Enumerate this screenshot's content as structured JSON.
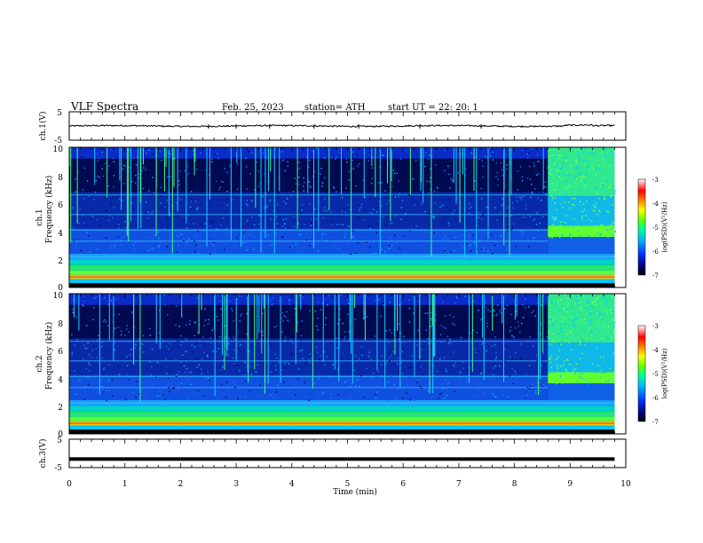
{
  "header": {
    "title": "VLF  Spectra",
    "date": "Feb. 25, 2023",
    "station": "station= ATH",
    "start": "start  UT  =    22: 20: 1"
  },
  "colors": {
    "background": "#ffffff",
    "axes": "#000000",
    "waveform": "#000000",
    "colormap": [
      "#000000",
      "#0000a0",
      "#0050ff",
      "#00c8ff",
      "#00ff80",
      "#c8ff00",
      "#ff8000",
      "#ff0000",
      "#ffffff"
    ]
  },
  "chart_data": [
    {
      "type": "line",
      "panel": "ch1-waveform",
      "ylabel": "ch.1(V)",
      "ylim": [
        -5,
        5
      ],
      "yticks": [
        "5",
        "-5"
      ],
      "xlim": [
        0,
        10
      ],
      "series": [
        {
          "x": [
            0,
            1,
            2,
            3,
            4,
            5,
            6,
            7,
            8,
            8.6,
            9,
            9.8
          ],
          "values": [
            0,
            0.2,
            -0.1,
            0.1,
            0,
            0.2,
            -0.1,
            0.1,
            0,
            0.1,
            0.3,
            0.1
          ]
        }
      ]
    },
    {
      "type": "heatmap",
      "panel": "ch1-spectrogram",
      "ylabel_channel": "ch.1",
      "ylabel": "Frequency  (kHz)",
      "ylim": [
        0,
        10
      ],
      "yticks": [
        "0",
        "2",
        "4",
        "6",
        "8",
        "10"
      ],
      "xlim": [
        0,
        10
      ],
      "data_end_min": 9.8,
      "colorbar_label": "log(PSD)(V²/Hz)",
      "colorbar_ticks": [
        "-3",
        "-4",
        "-5",
        "-6",
        "-7"
      ],
      "colorbar_range": [
        -7,
        -3
      ]
    },
    {
      "type": "heatmap",
      "panel": "ch2-spectrogram",
      "ylabel_channel": "ch.2",
      "ylabel": "Frequency  (kHz)",
      "ylim": [
        0,
        10
      ],
      "yticks": [
        "0",
        "2",
        "4",
        "6",
        "8",
        "10"
      ],
      "xlim": [
        0,
        10
      ],
      "data_end_min": 9.8,
      "colorbar_label": "log(PSD)(V²/Hz)",
      "colorbar_ticks": [
        "-3",
        "-4",
        "-5",
        "-6",
        "-7"
      ],
      "colorbar_range": [
        -7,
        -3
      ]
    },
    {
      "type": "line",
      "panel": "ch3-waveform",
      "ylabel": "ch.3(V)",
      "ylim": [
        -5,
        5
      ],
      "yticks": [
        "5",
        "-5"
      ],
      "xlim": [
        0,
        10
      ],
      "xlabel": "Time  (min)",
      "xticks": [
        "0",
        "1",
        "2",
        "3",
        "4",
        "5",
        "6",
        "7",
        "8",
        "9",
        "10"
      ],
      "series": [
        {
          "x": [
            0,
            9.8
          ],
          "values": [
            -2,
            -2
          ]
        }
      ]
    }
  ]
}
